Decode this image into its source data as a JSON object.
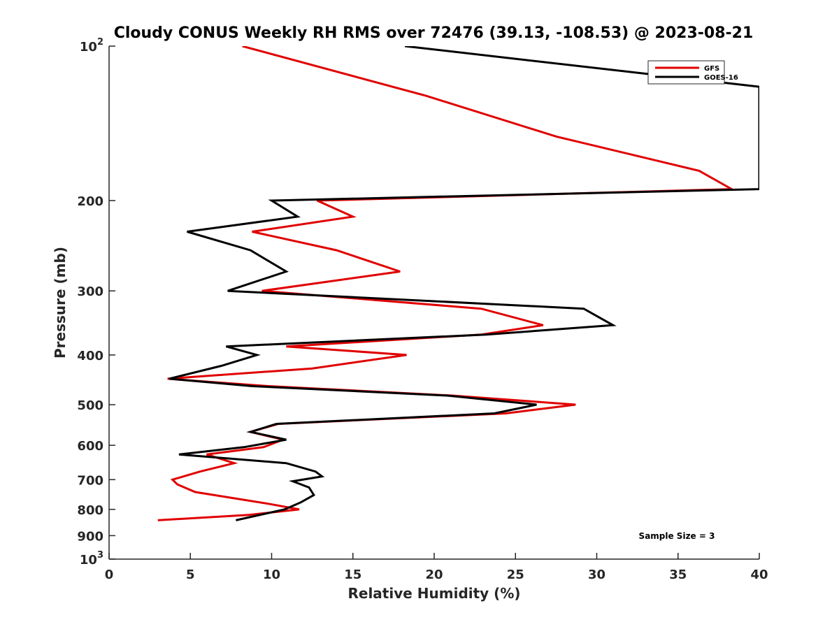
{
  "chart_data": {
    "type": "line",
    "title": "Cloudy CONUS Weekly RH RMS over 72476 (39.13, -108.53) @ 2023-08-21",
    "xlabel": "Relative Humidity (%)",
    "ylabel": "Pressure (mb)",
    "xlim": [
      0,
      40
    ],
    "ylim": [
      100,
      1000
    ],
    "y_scale": "log",
    "y_reversed": true,
    "x_ticks": [
      "0",
      "5",
      "10",
      "15",
      "20",
      "25",
      "30",
      "35",
      "40"
    ],
    "y_ticks": [
      {
        "value": 100,
        "base": "10",
        "exp": "2"
      },
      {
        "value": 200,
        "label": "200"
      },
      {
        "value": 300,
        "label": "300"
      },
      {
        "value": 400,
        "label": "400"
      },
      {
        "value": 500,
        "label": "500"
      },
      {
        "value": 600,
        "label": "600"
      },
      {
        "value": 700,
        "label": "700"
      },
      {
        "value": 800,
        "label": "800"
      },
      {
        "value": 900,
        "label": "900"
      },
      {
        "value": 1000,
        "base": "10",
        "exp": "3"
      }
    ],
    "legend_position": "top-right",
    "grid": false,
    "series": [
      {
        "name": "GFS",
        "color": "#e00000",
        "points": [
          [
            8.2,
            100
          ],
          [
            19.5,
            125
          ],
          [
            27.5,
            150
          ],
          [
            36.3,
            175
          ],
          [
            38.3,
            190
          ],
          [
            12.8,
            200
          ],
          [
            15.0,
            215
          ],
          [
            8.8,
            230
          ],
          [
            14.0,
            250
          ],
          [
            17.9,
            275
          ],
          [
            9.4,
            300
          ],
          [
            22.9,
            325
          ],
          [
            26.7,
            350
          ],
          [
            22.9,
            365
          ],
          [
            10.9,
            385
          ],
          [
            18.3,
            400
          ],
          [
            12.5,
            425
          ],
          [
            3.6,
            445
          ],
          [
            9.8,
            460
          ],
          [
            21.1,
            480
          ],
          [
            28.7,
            500
          ],
          [
            24.4,
            520
          ],
          [
            10.4,
            545
          ],
          [
            8.7,
            565
          ],
          [
            10.7,
            585
          ],
          [
            9.5,
            605
          ],
          [
            6.0,
            625
          ],
          [
            7.7,
            650
          ],
          [
            5.6,
            675
          ],
          [
            3.9,
            700
          ],
          [
            4.2,
            715
          ],
          [
            5.3,
            740
          ],
          [
            9.8,
            780
          ],
          [
            11.7,
            800
          ],
          [
            8.6,
            820
          ],
          [
            3.0,
            840
          ]
        ]
      },
      {
        "name": "GOES-16",
        "color": "#000000",
        "points": [
          [
            18.2,
            100
          ],
          [
            40.0,
            120
          ],
          [
            40.0,
            190
          ],
          [
            10.0,
            200
          ],
          [
            11.6,
            215
          ],
          [
            4.8,
            230
          ],
          [
            8.7,
            250
          ],
          [
            10.9,
            275
          ],
          [
            7.3,
            300
          ],
          [
            29.2,
            325
          ],
          [
            31.0,
            350
          ],
          [
            23.2,
            365
          ],
          [
            7.2,
            385
          ],
          [
            9.1,
            400
          ],
          [
            6.9,
            420
          ],
          [
            3.7,
            445
          ],
          [
            8.8,
            460
          ],
          [
            20.8,
            480
          ],
          [
            26.3,
            500
          ],
          [
            23.7,
            520
          ],
          [
            10.3,
            545
          ],
          [
            8.7,
            565
          ],
          [
            10.9,
            585
          ],
          [
            8.3,
            605
          ],
          [
            4.3,
            625
          ],
          [
            10.9,
            650
          ],
          [
            12.7,
            675
          ],
          [
            13.1,
            690
          ],
          [
            11.3,
            705
          ],
          [
            12.3,
            725
          ],
          [
            12.6,
            750
          ],
          [
            11.8,
            775
          ],
          [
            10.8,
            800
          ],
          [
            7.8,
            840
          ]
        ]
      }
    ],
    "annotation": "Sample Size = 3"
  }
}
